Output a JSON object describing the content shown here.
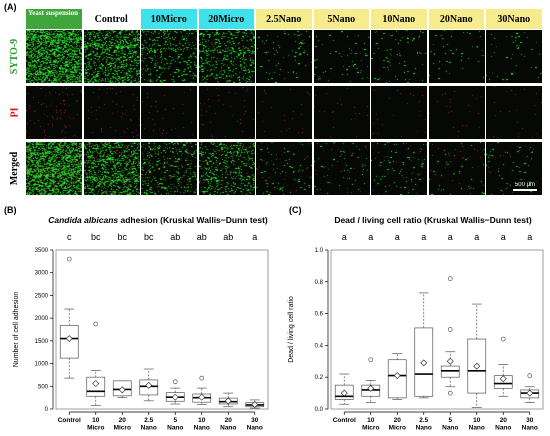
{
  "panelA": {
    "label": "(A)",
    "columns": [
      {
        "name": "Yeast suspension",
        "bg": "#3ea63a",
        "small": true
      },
      {
        "name": "Control",
        "bg": "#ffffff"
      },
      {
        "name": "10Micro",
        "bg": "#3fe2ea"
      },
      {
        "name": "20Micro",
        "bg": "#3fe2ea"
      },
      {
        "name": "2.5Nano",
        "bg": "#f6ec8e"
      },
      {
        "name": "5Nano",
        "bg": "#f6ec8e"
      },
      {
        "name": "10Nano",
        "bg": "#f6ec8e"
      },
      {
        "name": "20Nano",
        "bg": "#f6ec8e"
      },
      {
        "name": "30Nano",
        "bg": "#f6ec8e"
      }
    ],
    "rows": [
      {
        "name": "SYTO-9",
        "color": "#2e9a2e"
      },
      {
        "name": "PI",
        "color": "#e01010"
      },
      {
        "name": "Merged",
        "color": "#000000"
      }
    ],
    "density": [
      1.0,
      0.55,
      0.22,
      0.3,
      0.05,
      0.04,
      0.05,
      0.03,
      0.03
    ],
    "scalebar": "500 µm",
    "colors": {
      "green": "#38d038",
      "red": "#c02828",
      "tile_bg": "#050805"
    }
  },
  "panelB": {
    "label": "(B)",
    "title_italic": "Candida albicans",
    "title_rest": " adhesion (Kruskal Wallis−Dunn test)"
  },
  "panelC": {
    "label": "(C)",
    "title": "Dead / living cell ratio (Kruskal Wallis−Dunn test)"
  },
  "chart_data": [
    {
      "type": "boxplot",
      "ylabel": "Number of cell adhesion",
      "ylim": [
        0,
        3500
      ],
      "yticks": [
        0,
        500,
        1000,
        1500,
        2000,
        2500,
        3000,
        3500
      ],
      "categories": [
        [
          "Control"
        ],
        [
          "10",
          "Micro"
        ],
        [
          "20",
          "Micro"
        ],
        [
          "2.5",
          "Nano"
        ],
        [
          "5",
          "Nano"
        ],
        [
          "10",
          "Nano"
        ],
        [
          "20",
          "Nano"
        ],
        [
          "30",
          "Nano"
        ]
      ],
      "letters": [
        "c",
        "bc",
        "bc",
        "bc",
        "ab",
        "ab",
        "ab",
        "a"
      ],
      "boxes": [
        {
          "min": 680,
          "q1": 1120,
          "median": 1550,
          "q3": 1840,
          "max": 2200,
          "mean": 1550,
          "outliers": [
            3300
          ]
        },
        {
          "min": 80,
          "q1": 280,
          "median": 390,
          "q3": 700,
          "max": 850,
          "mean": 560,
          "outliers": [
            1870
          ]
        },
        {
          "min": 250,
          "q1": 290,
          "median": 430,
          "q3": 620,
          "max": 620,
          "mean": 420,
          "outliers": []
        },
        {
          "min": 180,
          "q1": 310,
          "median": 500,
          "q3": 640,
          "max": 880,
          "mean": 520,
          "outliers": []
        },
        {
          "min": 110,
          "q1": 170,
          "median": 260,
          "q3": 360,
          "max": 460,
          "mean": 260,
          "outliers": [
            600
          ]
        },
        {
          "min": 100,
          "q1": 150,
          "median": 250,
          "q3": 330,
          "max": 460,
          "mean": 260,
          "outliers": [
            680
          ]
        },
        {
          "min": 50,
          "q1": 110,
          "median": 160,
          "q3": 240,
          "max": 350,
          "mean": 180,
          "outliers": []
        },
        {
          "min": 20,
          "q1": 50,
          "median": 90,
          "q3": 140,
          "max": 200,
          "mean": 100,
          "outliers": []
        }
      ]
    },
    {
      "type": "boxplot",
      "ylabel": "Dead / living cell ratio",
      "ylim": [
        0,
        1.0
      ],
      "yticks": [
        0.0,
        0.2,
        0.4,
        0.6,
        0.8,
        1.0
      ],
      "categories": [
        [
          "Control"
        ],
        [
          "10",
          "Micro"
        ],
        [
          "20",
          "Micro"
        ],
        [
          "2.5",
          "Nano"
        ],
        [
          "5",
          "Nano"
        ],
        [
          "10",
          "Nano"
        ],
        [
          "20",
          "Nano"
        ],
        [
          "30",
          "Nano"
        ]
      ],
      "letters": [
        "a",
        "a",
        "a",
        "a",
        "a",
        "a",
        "a",
        "a"
      ],
      "boxes": [
        {
          "min": 0.03,
          "q1": 0.06,
          "median": 0.08,
          "q3": 0.15,
          "max": 0.22,
          "mean": 0.1,
          "outliers": []
        },
        {
          "min": 0.04,
          "q1": 0.08,
          "median": 0.12,
          "q3": 0.15,
          "max": 0.18,
          "mean": 0.13,
          "outliers": [
            0.31
          ]
        },
        {
          "min": 0.06,
          "q1": 0.07,
          "median": 0.21,
          "q3": 0.31,
          "max": 0.35,
          "mean": 0.21,
          "outliers": []
        },
        {
          "min": 0.07,
          "q1": 0.08,
          "median": 0.22,
          "q3": 0.51,
          "max": 0.73,
          "mean": 0.29,
          "outliers": []
        },
        {
          "min": 0.14,
          "q1": 0.2,
          "median": 0.24,
          "q3": 0.27,
          "max": 0.36,
          "mean": 0.3,
          "outliers": [
            0.82,
            0.5,
            0.1
          ]
        },
        {
          "min": 0.01,
          "q1": 0.1,
          "median": 0.24,
          "q3": 0.44,
          "max": 0.66,
          "mean": 0.27,
          "outliers": []
        },
        {
          "min": 0.08,
          "q1": 0.13,
          "median": 0.16,
          "q3": 0.21,
          "max": 0.28,
          "mean": 0.19,
          "outliers": [
            0.44
          ]
        },
        {
          "min": 0.04,
          "q1": 0.07,
          "median": 0.1,
          "q3": 0.12,
          "max": 0.14,
          "mean": 0.1,
          "outliers": [
            0.21
          ]
        }
      ]
    }
  ]
}
